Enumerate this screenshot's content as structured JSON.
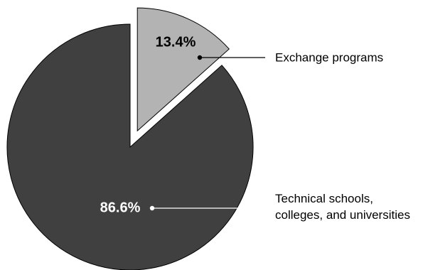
{
  "chart_data": {
    "type": "pie",
    "slices": [
      {
        "label_lines": [
          "Exchange programs"
        ],
        "value": 13.4,
        "value_label": "13.4%",
        "color": "#b3b3b3",
        "exploded": true
      },
      {
        "label_lines": [
          "Technical schools,",
          "colleges, and universities"
        ],
        "value": 86.6,
        "value_label": "86.6%",
        "color": "#404040",
        "exploded": false
      }
    ],
    "legend": "none",
    "colors": {
      "value_text_on_light": "#000000",
      "value_text_on_dark": "#ffffff",
      "outline": "#000000"
    }
  }
}
